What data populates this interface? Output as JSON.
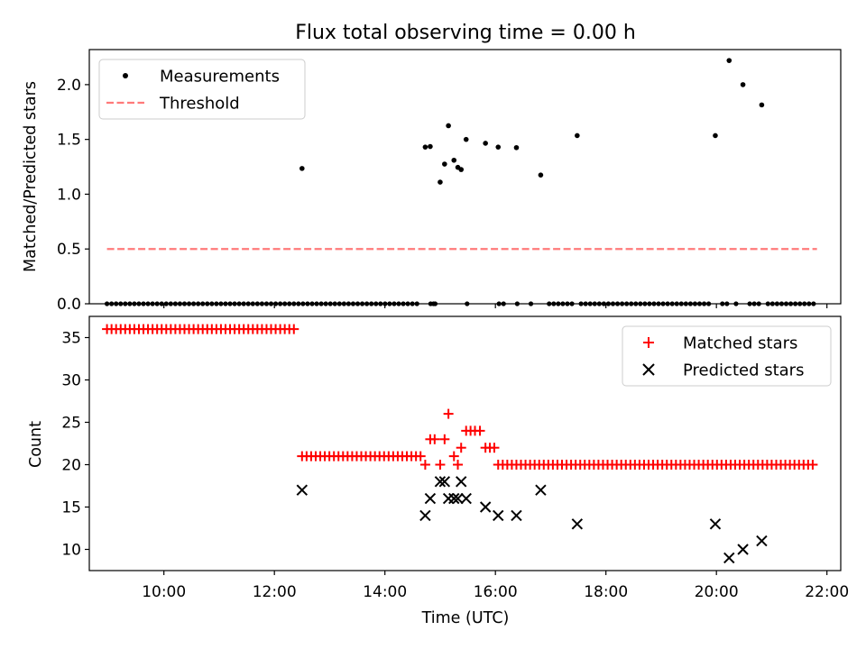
{
  "figure": {
    "title": "Flux total observing time = 0.00 h",
    "xlabel": "Time (UTC)"
  },
  "chart_data": [
    {
      "type": "scatter",
      "name": "ratio-panel",
      "ylabel": "Matched/Predicted stars",
      "ylim": [
        0,
        2.32
      ],
      "xlim": [
        8.65,
        22.25
      ],
      "yticks": [
        0.0,
        0.5,
        1.0,
        1.5,
        2.0
      ],
      "ytick_labels": [
        "0.0",
        "0.5",
        "1.0",
        "1.5",
        "2.0"
      ],
      "legend_position": "top-left",
      "series": [
        {
          "name": "Measurements",
          "marker": "dot",
          "color": "#000000",
          "points": [
            [
              12.5,
              1.235
            ],
            [
              14.73,
              1.43
            ],
            [
              14.82,
              1.435
            ],
            [
              15.0,
              1.11
            ],
            [
              15.08,
              1.275
            ],
            [
              15.15,
              1.625
            ],
            [
              15.25,
              1.31
            ],
            [
              15.32,
              1.245
            ],
            [
              15.38,
              1.225
            ],
            [
              15.47,
              1.5
            ],
            [
              15.82,
              1.465
            ],
            [
              16.05,
              1.43
            ],
            [
              16.38,
              1.425
            ],
            [
              16.82,
              1.175
            ],
            [
              17.48,
              1.535
            ],
            [
              19.98,
              1.535
            ],
            [
              20.23,
              2.22
            ],
            [
              20.48,
              2.0
            ],
            [
              20.82,
              1.815
            ]
          ],
          "zero_range": {
            "start": 8.97,
            "end": 21.82,
            "step": 0.0825,
            "value": 0,
            "gaps": [
              [
                14.58,
                14.75
              ],
              [
                14.95,
                15.45
              ],
              [
                15.49,
                15.82
              ],
              [
                15.85,
                16.05
              ],
              [
                16.15,
                16.38
              ],
              [
                16.41,
                16.58
              ],
              [
                16.72,
                16.92
              ],
              [
                17.45,
                17.52
              ],
              [
                19.92,
                20.08
              ],
              [
                20.2,
                20.3
              ],
              [
                20.38,
                20.55
              ],
              [
                20.78,
                20.88
              ]
            ],
            "extra": [
              14.88
            ]
          }
        },
        {
          "name": "Threshold",
          "line": "dashed",
          "color": "#ff7a7a",
          "x": [
            8.97,
            21.82
          ],
          "y": [
            0.5,
            0.5
          ]
        }
      ]
    },
    {
      "type": "scatter",
      "name": "count-panel",
      "ylabel": "Count",
      "ylim": [
        7.5,
        37.5
      ],
      "xlim": [
        8.65,
        22.25
      ],
      "yticks": [
        10,
        15,
        20,
        25,
        30,
        35
      ],
      "ytick_labels": [
        "10",
        "15",
        "20",
        "25",
        "30",
        "35"
      ],
      "xticks": [
        10,
        12,
        14,
        16,
        18,
        20,
        22
      ],
      "xtick_labels": [
        "10:00",
        "12:00",
        "14:00",
        "16:00",
        "18:00",
        "20:00",
        "22:00"
      ],
      "legend_position": "top-right",
      "series": [
        {
          "name": "Matched stars",
          "marker": "plus",
          "color": "#ff0000",
          "ranges": [
            {
              "start": 8.97,
              "end": 12.42,
              "step": 0.0825,
              "value": 36
            },
            {
              "start": 12.5,
              "end": 14.65,
              "step": 0.0825,
              "value": 21
            },
            {
              "start": 16.05,
              "end": 21.82,
              "step": 0.0825,
              "value": 20
            }
          ],
          "points": [
            [
              14.73,
              20
            ],
            [
              14.82,
              23
            ],
            [
              14.9,
              23
            ],
            [
              15.0,
              20
            ],
            [
              15.08,
              23
            ],
            [
              15.15,
              26
            ],
            [
              15.25,
              21
            ],
            [
              15.32,
              20
            ],
            [
              15.38,
              22
            ],
            [
              15.47,
              24
            ],
            [
              15.55,
              24
            ],
            [
              15.63,
              24
            ],
            [
              15.72,
              24
            ],
            [
              15.82,
              22
            ],
            [
              15.9,
              22
            ],
            [
              15.98,
              22
            ]
          ]
        },
        {
          "name": "Predicted stars",
          "marker": "x",
          "color": "#000000",
          "points": [
            [
              12.5,
              17
            ],
            [
              14.73,
              14
            ],
            [
              14.82,
              16
            ],
            [
              15.0,
              18
            ],
            [
              15.08,
              18
            ],
            [
              15.15,
              16
            ],
            [
              15.25,
              16
            ],
            [
              15.32,
              16
            ],
            [
              15.38,
              18
            ],
            [
              15.47,
              16
            ],
            [
              15.82,
              15
            ],
            [
              16.05,
              14
            ],
            [
              16.38,
              14
            ],
            [
              16.82,
              17
            ],
            [
              17.48,
              13
            ],
            [
              19.98,
              13
            ],
            [
              20.23,
              9
            ],
            [
              20.48,
              10
            ],
            [
              20.82,
              11
            ]
          ]
        }
      ]
    }
  ]
}
